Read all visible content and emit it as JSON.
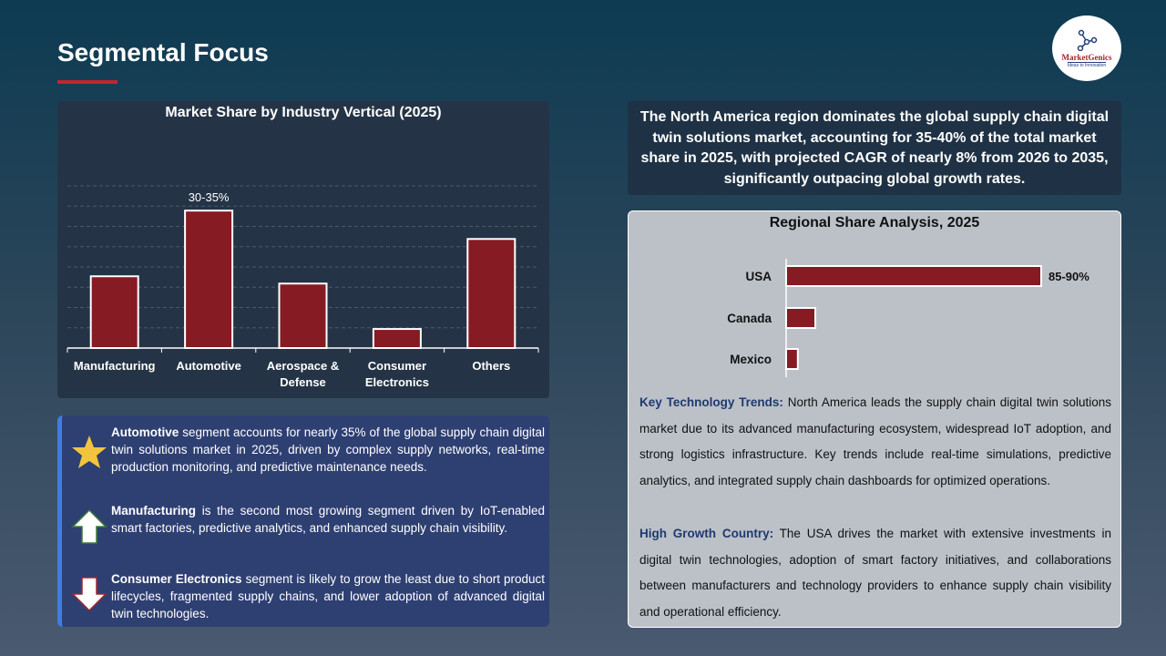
{
  "title": "Segmental Focus",
  "logo": {
    "name": "MarketGenics",
    "tagline": "Ideas to Innovation"
  },
  "chart_data": [
    {
      "type": "bar",
      "title": "Market Share by Industry Vertical (2025)",
      "categories": [
        "Manufacturing",
        "Automotive",
        "Aerospace & Defense",
        "Consumer Electronics",
        "Others"
      ],
      "values": [
        17.7,
        33.9,
        15.9,
        4.7,
        26.9
      ],
      "data_labels": [
        "",
        "30-35%",
        "",
        "",
        ""
      ],
      "ylim": [
        0,
        40
      ],
      "grid": true,
      "color": "#861b24"
    },
    {
      "type": "bar",
      "orientation": "horizontal",
      "title": "Regional Share Analysis, 2025",
      "categories": [
        "USA",
        "Canada",
        "Mexico"
      ],
      "values": [
        87.5,
        10,
        4
      ],
      "data_labels": [
        "85-90%",
        "",
        ""
      ],
      "xlim": [
        0,
        100
      ],
      "grid": false,
      "color": "#861b24"
    }
  ],
  "insights": [
    {
      "icon": "star-icon",
      "bold": "Automotive",
      "text": " segment accounts for nearly 35% of the global supply chain digital twin solutions market in 2025, driven by complex supply networks, real-time production monitoring, and predictive maintenance needs."
    },
    {
      "icon": "arrow-up-icon",
      "bold": "Manufacturing",
      "text": " is the second most growing segment driven by IoT-enabled smart factories, predictive analytics, and enhanced supply chain visibility."
    },
    {
      "icon": "arrow-down-icon",
      "bold": "Consumer Electronics",
      "text": " segment is likely to grow the least due to short product lifecycles, fragmented supply chains, and lower adoption of advanced digital twin technologies."
    }
  ],
  "summary": "The North America region dominates the global supply chain digital twin solutions market, accounting for 35-40% of the total market share in 2025, with projected CAGR of nearly 8% from 2026 to 2035, significantly outpacing global growth rates.",
  "trends": {
    "label": "Key Technology Trends:",
    "text": " North America leads the supply chain digital twin solutions market due to its advanced manufacturing ecosystem, widespread IoT adoption, and strong logistics infrastructure. Key trends include real-time simulations, predictive analytics, and integrated supply chain dashboards for optimized operations."
  },
  "growth": {
    "label": "High Growth Country:",
    "text": " The USA drives the market with extensive investments in digital twin technologies, adoption of smart factory initiatives, and collaborations between manufacturers and technology providers to enhance supply chain visibility and operational efficiency."
  }
}
